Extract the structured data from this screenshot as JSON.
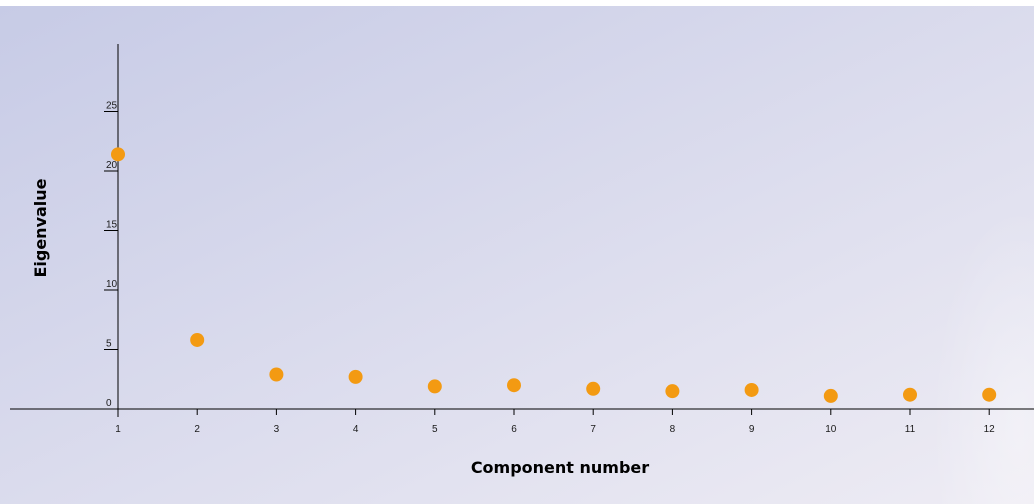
{
  "chart_data": {
    "type": "scatter",
    "xlabel": "Component number",
    "ylabel": "Eigenvalue",
    "x": [
      1,
      2,
      3,
      4,
      5,
      6,
      7,
      8,
      9,
      10,
      11,
      12
    ],
    "y": [
      21.4,
      5.8,
      2.9,
      2.7,
      1.9,
      2.0,
      1.7,
      1.5,
      1.6,
      1.1,
      1.2,
      1.2
    ],
    "x_ticks": [
      1,
      2,
      3,
      4,
      5,
      6,
      7,
      8,
      9,
      10,
      11,
      12
    ],
    "y_ticks": [
      0,
      5,
      10,
      15,
      20,
      25
    ],
    "xlim": [
      1,
      12
    ],
    "ylim": [
      0,
      30
    ],
    "grid": false,
    "legend": "none",
    "colors": {
      "point": "#f39a12",
      "axis": "#000000",
      "background_start": "#c7cbe6",
      "background_end": "#eeecf4"
    }
  }
}
